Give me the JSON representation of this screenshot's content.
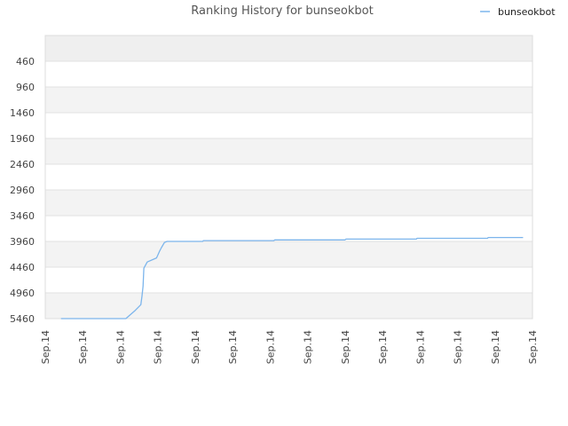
{
  "chart_data": {
    "type": "line",
    "title": "Ranking History for bunseokbot",
    "xlabel": "",
    "ylabel": "",
    "y_reversed": true,
    "ylim": [
      5460,
      -40
    ],
    "yticks": [
      460,
      960,
      1460,
      1960,
      2460,
      2960,
      3460,
      3960,
      4460,
      4960,
      5460
    ],
    "x_tick_labels": [
      "Sep.14",
      "Sep.14",
      "Sep.14",
      "Sep.14",
      "Sep.14",
      "Sep.14",
      "Sep.14",
      "Sep.14",
      "Sep.14",
      "Sep.14",
      "Sep.14",
      "Sep.14",
      "Sep.14",
      "Sep.14"
    ],
    "xlim": [
      0,
      13
    ],
    "grid": true,
    "legend_position": "top-right",
    "series": [
      {
        "name": "bunseokbot",
        "color": "#7cb5ec",
        "points": [
          [
            0.42,
            5460
          ],
          [
            2.15,
            5460
          ],
          [
            2.4,
            5300
          ],
          [
            2.55,
            5190
          ],
          [
            2.58,
            5020
          ],
          [
            2.61,
            4830
          ],
          [
            2.63,
            4480
          ],
          [
            2.72,
            4360
          ],
          [
            2.97,
            4280
          ],
          [
            3.05,
            4150
          ],
          [
            3.1,
            4080
          ],
          [
            3.18,
            3980
          ],
          [
            3.25,
            3960
          ],
          [
            4.2,
            3960
          ],
          [
            4.22,
            3945
          ],
          [
            6.1,
            3945
          ],
          [
            6.12,
            3930
          ],
          [
            8.0,
            3930
          ],
          [
            8.02,
            3915
          ],
          [
            9.9,
            3915
          ],
          [
            9.92,
            3900
          ],
          [
            11.8,
            3900
          ],
          [
            11.82,
            3885
          ],
          [
            12.75,
            3885
          ]
        ]
      }
    ]
  }
}
